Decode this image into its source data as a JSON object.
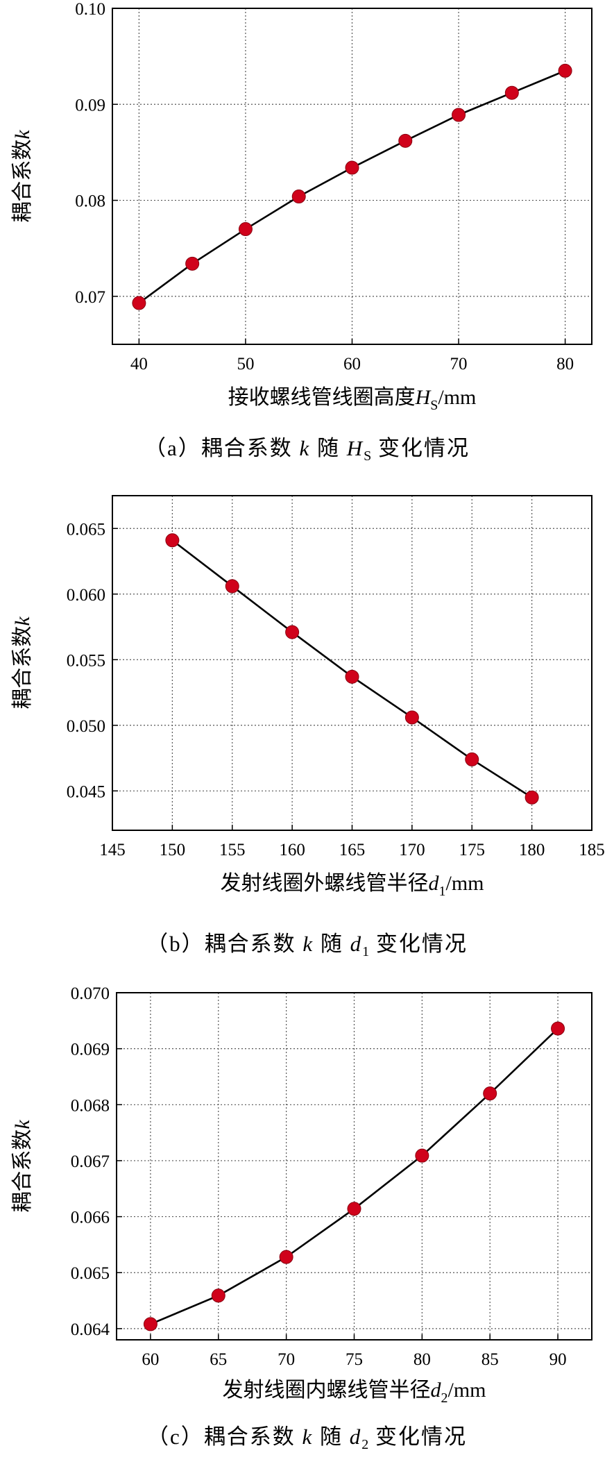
{
  "chart_data": [
    {
      "type": "line",
      "panel": "a",
      "xlabel": "接收螺线管线圈高度H_S/mm",
      "xlabel_parts": {
        "main": "接收螺线管线圈高度",
        "var": "H",
        "sub": "S",
        "unit": "/mm"
      },
      "ylabel": "耦合系数k",
      "ylabel_parts": {
        "main": "耦合系数",
        "var": "k"
      },
      "x": [
        40,
        45,
        50,
        55,
        60,
        65,
        70,
        75,
        80
      ],
      "y": [
        0.0693,
        0.0734,
        0.077,
        0.0804,
        0.0834,
        0.0862,
        0.0889,
        0.0912,
        0.0935
      ],
      "xlim": [
        37.5,
        82.5
      ],
      "ylim": [
        0.065,
        0.1
      ],
      "xticks": [
        40,
        50,
        60,
        70,
        80
      ],
      "yticks": [
        0.07,
        0.08,
        0.09,
        0.1
      ],
      "xtick_labels": [
        "40",
        "50",
        "60",
        "70",
        "80"
      ],
      "ytick_labels": [
        "0.07",
        "0.08",
        "0.09",
        "0.10"
      ],
      "grid": true,
      "marker_color": "#d0021b",
      "line_color": "#000000"
    },
    {
      "type": "line",
      "panel": "b",
      "xlabel": "发射线圈外螺线管半径d_1/mm",
      "xlabel_parts": {
        "main": "发射线圈外螺线管半径",
        "var": "d",
        "sub": "1",
        "unit": "/mm"
      },
      "ylabel": "耦合系数k",
      "ylabel_parts": {
        "main": "耦合系数",
        "var": "k"
      },
      "x": [
        150,
        155,
        160,
        165,
        170,
        175,
        180
      ],
      "y": [
        0.0641,
        0.0606,
        0.0571,
        0.0537,
        0.0506,
        0.0474,
        0.0445
      ],
      "xlim": [
        145,
        185
      ],
      "ylim": [
        0.042,
        0.0675
      ],
      "xticks": [
        145,
        150,
        155,
        160,
        165,
        170,
        175,
        180,
        185
      ],
      "yticks": [
        0.045,
        0.05,
        0.055,
        0.06,
        0.065
      ],
      "xtick_labels": [
        "145",
        "150",
        "155",
        "160",
        "165",
        "170",
        "175",
        "180",
        "185"
      ],
      "ytick_labels": [
        "0.045",
        "0.050",
        "0.055",
        "0.060",
        "0.065"
      ],
      "grid": true,
      "marker_color": "#d0021b",
      "line_color": "#000000"
    },
    {
      "type": "line",
      "panel": "c",
      "xlabel": "发射线圈内螺线管半径d_2/mm",
      "xlabel_parts": {
        "main": "发射线圈内螺线管半径",
        "var": "d",
        "sub": "2",
        "unit": "/mm"
      },
      "ylabel": "耦合系数k",
      "ylabel_parts": {
        "main": "耦合系数",
        "var": "k"
      },
      "x": [
        60,
        65,
        70,
        75,
        80,
        85,
        90
      ],
      "y": [
        0.06408,
        0.06459,
        0.06528,
        0.06614,
        0.06709,
        0.0682,
        0.06936
      ],
      "xlim": [
        57.5,
        92.5
      ],
      "ylim": [
        0.0638,
        0.07
      ],
      "xticks": [
        60,
        65,
        70,
        75,
        80,
        85,
        90
      ],
      "yticks": [
        0.064,
        0.065,
        0.066,
        0.067,
        0.068,
        0.069,
        0.07
      ],
      "xtick_labels": [
        "60",
        "65",
        "70",
        "75",
        "80",
        "85",
        "90"
      ],
      "ytick_labels": [
        "0.064",
        "0.065",
        "0.066",
        "0.067",
        "0.068",
        "0.069",
        "0.070"
      ],
      "grid": true,
      "marker_color": "#d0021b",
      "line_color": "#000000"
    }
  ],
  "captions": [
    {
      "prefix": "（a）耦合系数 ",
      "var": "k",
      "mid": " 随 ",
      "var2": "H",
      "sub": "S",
      "suffix": " 变化情况"
    },
    {
      "prefix": "（b）耦合系数 ",
      "var": "k",
      "mid": " 随 ",
      "var2": "d",
      "sub": "1",
      "suffix": " 变化情况"
    },
    {
      "prefix": "（c）耦合系数 ",
      "var": "k",
      "mid": " 随 ",
      "var2": "d",
      "sub": "2",
      "suffix": " 变化情况"
    }
  ]
}
